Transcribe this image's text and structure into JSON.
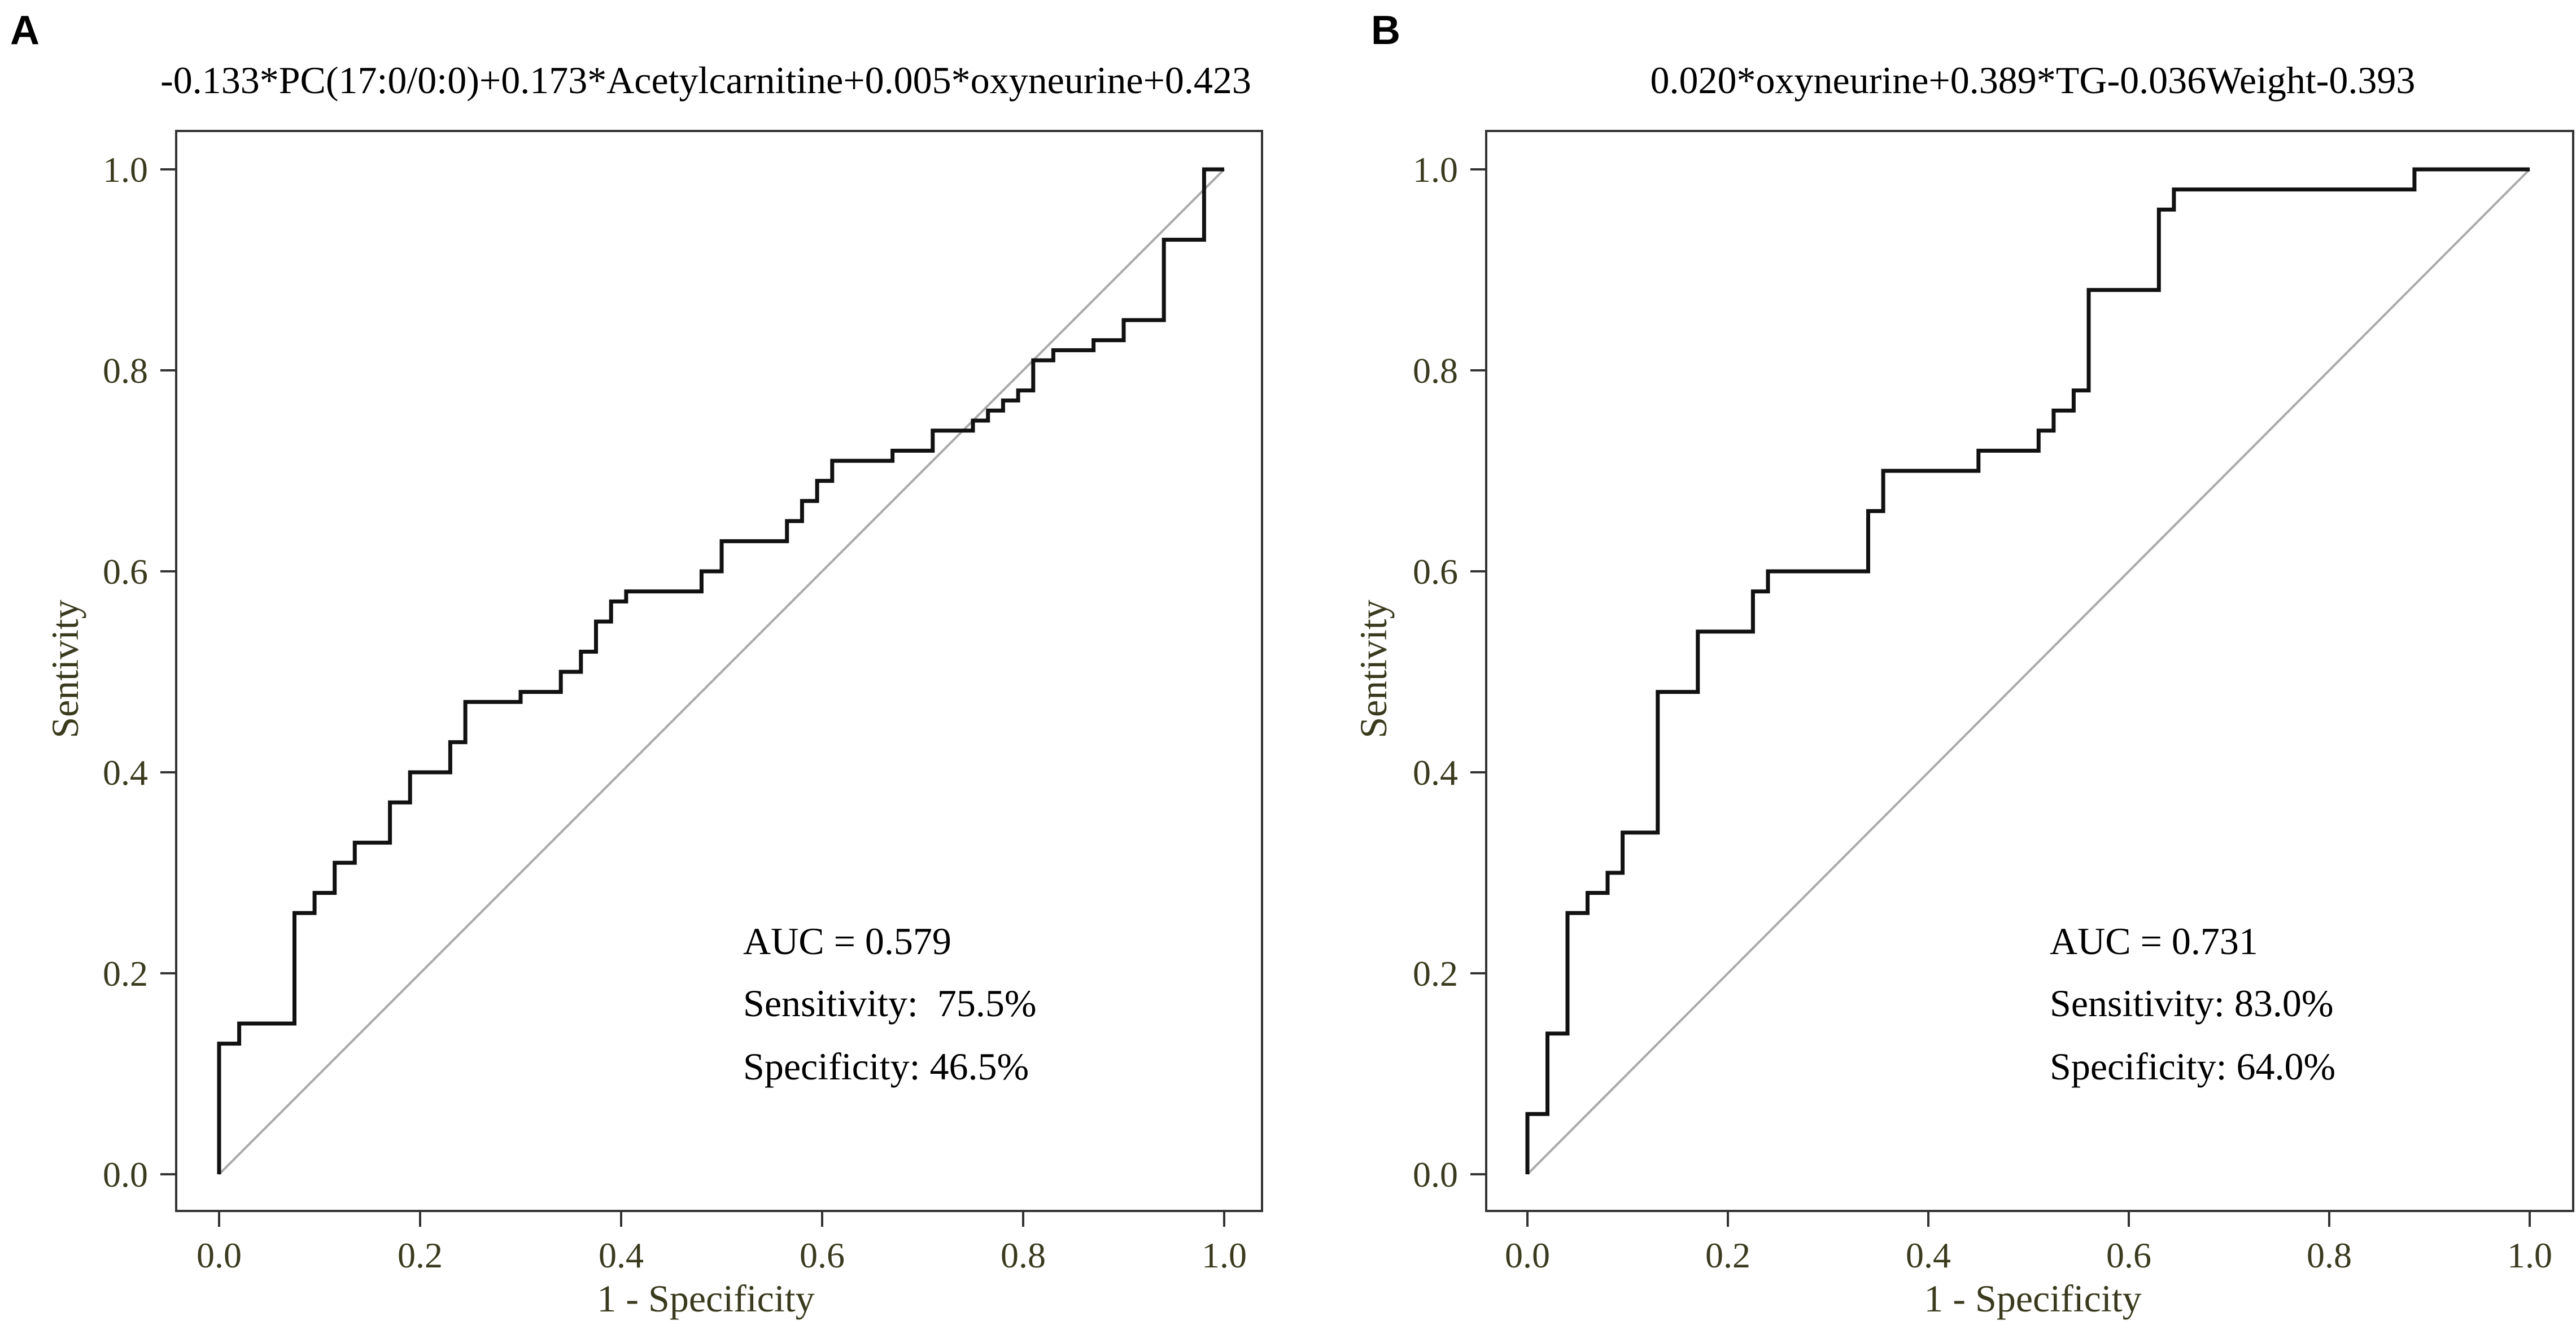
{
  "chart_data": [
    {
      "type": "line",
      "panel_label": "A",
      "title": "-0.133*PC(17:0/0:0)+0.173*Acetylcarnitine+0.005*oxyneurine+0.423",
      "xlabel": "1 - Specificity",
      "ylabel": "Sentivity",
      "xlim": [
        0,
        1
      ],
      "ylim": [
        0,
        1
      ],
      "xticks": [
        "0.0",
        "0.2",
        "0.4",
        "0.6",
        "0.8",
        "1.0"
      ],
      "yticks": [
        "0.0",
        "0.2",
        "0.4",
        "0.6",
        "0.8",
        "1.0"
      ],
      "grid": false,
      "reference_line": [
        [
          0,
          0
        ],
        [
          1,
          1
        ]
      ],
      "series": [
        {
          "name": "ROC",
          "points": [
            [
              0,
              0
            ],
            [
              0,
              0.13
            ],
            [
              0.02,
              0.13
            ],
            [
              0.02,
              0.15
            ],
            [
              0.075,
              0.15
            ],
            [
              0.075,
              0.26
            ],
            [
              0.095,
              0.26
            ],
            [
              0.095,
              0.28
            ],
            [
              0.115,
              0.28
            ],
            [
              0.115,
              0.31
            ],
            [
              0.135,
              0.31
            ],
            [
              0.135,
              0.33
            ],
            [
              0.17,
              0.33
            ],
            [
              0.17,
              0.37
            ],
            [
              0.19,
              0.37
            ],
            [
              0.19,
              0.4
            ],
            [
              0.23,
              0.4
            ],
            [
              0.23,
              0.43
            ],
            [
              0.245,
              0.43
            ],
            [
              0.245,
              0.47
            ],
            [
              0.3,
              0.47
            ],
            [
              0.3,
              0.48
            ],
            [
              0.34,
              0.48
            ],
            [
              0.34,
              0.5
            ],
            [
              0.36,
              0.5
            ],
            [
              0.36,
              0.52
            ],
            [
              0.375,
              0.52
            ],
            [
              0.375,
              0.55
            ],
            [
              0.39,
              0.55
            ],
            [
              0.39,
              0.57
            ],
            [
              0.405,
              0.57
            ],
            [
              0.405,
              0.58
            ],
            [
              0.48,
              0.58
            ],
            [
              0.48,
              0.6
            ],
            [
              0.5,
              0.6
            ],
            [
              0.5,
              0.63
            ],
            [
              0.565,
              0.63
            ],
            [
              0.565,
              0.65
            ],
            [
              0.58,
              0.65
            ],
            [
              0.58,
              0.67
            ],
            [
              0.595,
              0.67
            ],
            [
              0.595,
              0.69
            ],
            [
              0.61,
              0.69
            ],
            [
              0.61,
              0.71
            ],
            [
              0.67,
              0.71
            ],
            [
              0.67,
              0.72
            ],
            [
              0.71,
              0.72
            ],
            [
              0.71,
              0.74
            ],
            [
              0.75,
              0.74
            ],
            [
              0.75,
              0.75
            ],
            [
              0.765,
              0.75
            ],
            [
              0.765,
              0.76
            ],
            [
              0.78,
              0.76
            ],
            [
              0.78,
              0.77
            ],
            [
              0.795,
              0.77
            ],
            [
              0.795,
              0.78
            ],
            [
              0.81,
              0.78
            ],
            [
              0.81,
              0.81
            ],
            [
              0.83,
              0.81
            ],
            [
              0.83,
              0.82
            ],
            [
              0.87,
              0.82
            ],
            [
              0.87,
              0.83
            ],
            [
              0.9,
              0.83
            ],
            [
              0.9,
              0.85
            ],
            [
              0.94,
              0.85
            ],
            [
              0.94,
              0.93
            ],
            [
              0.98,
              0.93
            ],
            [
              0.98,
              1.0
            ],
            [
              1.0,
              1.0
            ]
          ]
        }
      ],
      "annotations": [
        "AUC = 0.579",
        "Sensitivity:  75.5%",
        "Specificity: 46.5%"
      ]
    },
    {
      "type": "line",
      "panel_label": "B",
      "title": "0.020*oxyneurine+0.389*TG-0.036Weight-0.393",
      "xlabel": "1 - Specificity",
      "ylabel": "Sentivity",
      "xlim": [
        0,
        1
      ],
      "ylim": [
        0,
        1
      ],
      "xticks": [
        "0.0",
        "0.2",
        "0.4",
        "0.6",
        "0.8",
        "1.0"
      ],
      "yticks": [
        "0.0",
        "0.2",
        "0.4",
        "0.6",
        "0.8",
        "1.0"
      ],
      "grid": false,
      "reference_line": [
        [
          0,
          0
        ],
        [
          1,
          1
        ]
      ],
      "series": [
        {
          "name": "ROC",
          "points": [
            [
              0,
              0
            ],
            [
              0,
              0.06
            ],
            [
              0.02,
              0.06
            ],
            [
              0.02,
              0.14
            ],
            [
              0.04,
              0.14
            ],
            [
              0.04,
              0.26
            ],
            [
              0.06,
              0.26
            ],
            [
              0.06,
              0.28
            ],
            [
              0.08,
              0.28
            ],
            [
              0.08,
              0.3
            ],
            [
              0.095,
              0.3
            ],
            [
              0.095,
              0.34
            ],
            [
              0.13,
              0.34
            ],
            [
              0.13,
              0.48
            ],
            [
              0.17,
              0.48
            ],
            [
              0.17,
              0.54
            ],
            [
              0.225,
              0.54
            ],
            [
              0.225,
              0.58
            ],
            [
              0.24,
              0.58
            ],
            [
              0.24,
              0.6
            ],
            [
              0.34,
              0.6
            ],
            [
              0.34,
              0.66
            ],
            [
              0.355,
              0.66
            ],
            [
              0.355,
              0.7
            ],
            [
              0.45,
              0.7
            ],
            [
              0.45,
              0.72
            ],
            [
              0.51,
              0.72
            ],
            [
              0.51,
              0.74
            ],
            [
              0.525,
              0.74
            ],
            [
              0.525,
              0.76
            ],
            [
              0.545,
              0.76
            ],
            [
              0.545,
              0.78
            ],
            [
              0.56,
              0.78
            ],
            [
              0.56,
              0.88
            ],
            [
              0.63,
              0.88
            ],
            [
              0.63,
              0.96
            ],
            [
              0.645,
              0.96
            ],
            [
              0.645,
              0.98
            ],
            [
              0.885,
              0.98
            ],
            [
              0.885,
              1.0
            ],
            [
              1.0,
              1.0
            ]
          ]
        }
      ],
      "annotations": [
        "AUC = 0.731",
        "Sensitivity: 83.0%",
        "Specificity: 64.0%"
      ]
    }
  ]
}
